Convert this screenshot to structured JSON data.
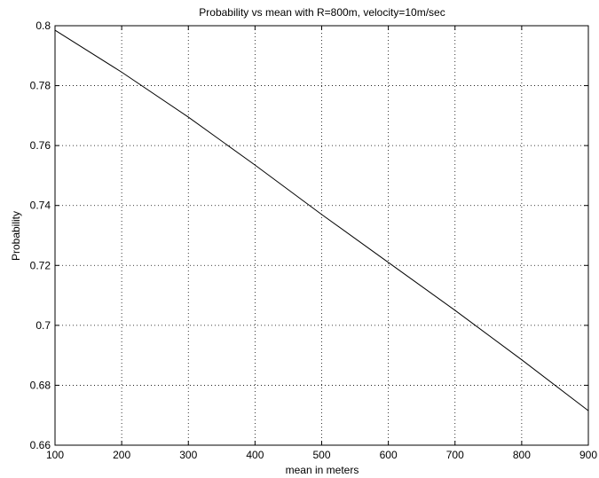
{
  "chart_data": {
    "type": "line",
    "title": "Probability vs mean with R=800m, velocity=10m/sec",
    "xlabel": "mean in meters",
    "ylabel": "Probability",
    "xlim": [
      100,
      900
    ],
    "ylim": [
      0.66,
      0.8
    ],
    "xticks": [
      100,
      200,
      300,
      400,
      500,
      600,
      700,
      800,
      900
    ],
    "yticks": [
      0.66,
      0.68,
      0.7,
      0.72,
      0.74,
      0.76,
      0.78,
      0.8
    ],
    "ytick_labels": [
      "0.66",
      "0.68",
      "0.7",
      "0.72",
      "0.74",
      "0.76",
      "0.78",
      "0.8"
    ],
    "grid": true,
    "series": [
      {
        "color": "#000000",
        "x": [
          100,
          200,
          300,
          400,
          500,
          600,
          700,
          800,
          900
        ],
        "y": [
          0.7985,
          0.7845,
          0.7695,
          0.7535,
          0.737,
          0.721,
          0.705,
          0.6885,
          0.6715
        ]
      }
    ]
  }
}
